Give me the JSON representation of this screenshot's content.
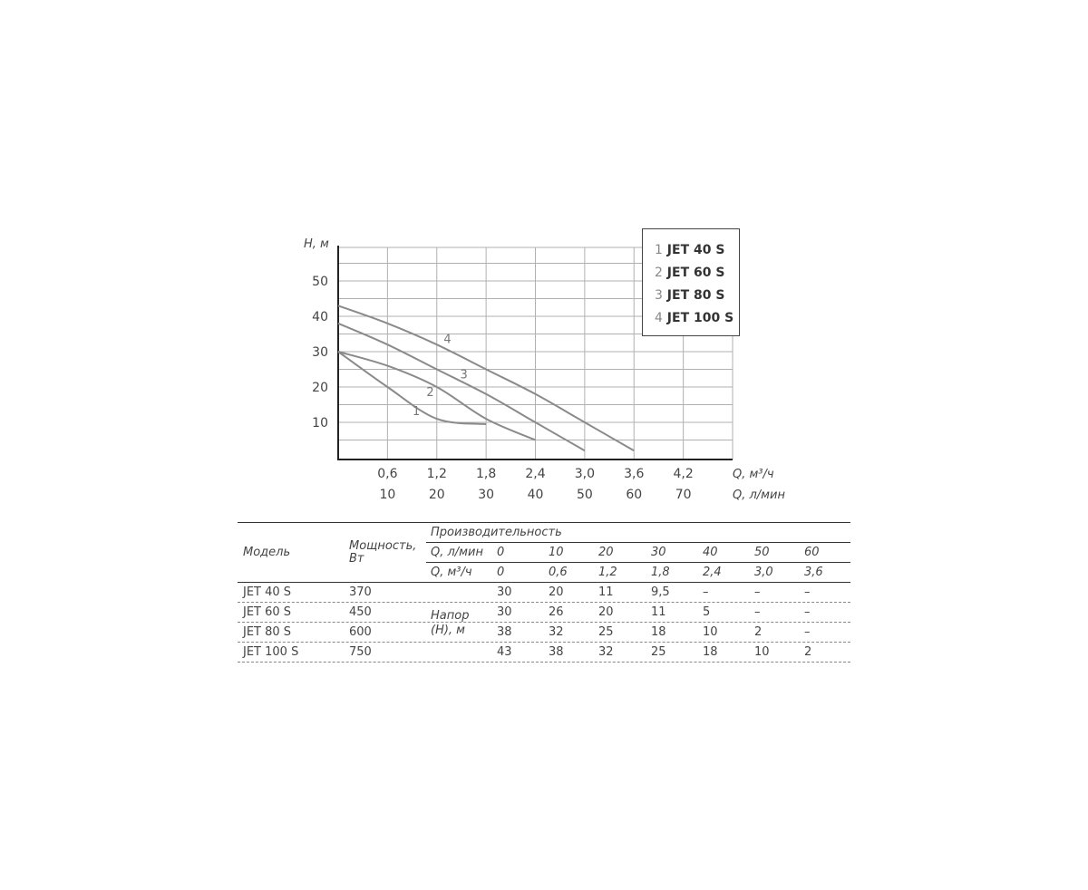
{
  "chart_data": {
    "type": "line",
    "ylabel": "H, м",
    "xlabel_primary": "Q, м³/ч",
    "xlabel_secondary": "Q, л/мин",
    "x_ticks_m3h": [
      "0,6",
      "1,2",
      "1,8",
      "2,4",
      "3,0",
      "3,6",
      "4,2"
    ],
    "x_ticks_lmin": [
      "10",
      "20",
      "30",
      "40",
      "50",
      "60",
      "70"
    ],
    "y_ticks": [
      "10",
      "20",
      "30",
      "40",
      "50"
    ],
    "xlim": [
      0,
      4.8
    ],
    "ylim": [
      0,
      60
    ],
    "grid": true,
    "legend_placement": "top-right",
    "colors": {
      "line": "#8a8a8a",
      "grid": "#b0b0b0",
      "axis": "#222222"
    },
    "series": [
      {
        "name": "JET 40 S",
        "num": "1",
        "x": [
          0,
          0.6,
          1.2,
          1.8
        ],
        "y": [
          30,
          20,
          11,
          9.5
        ]
      },
      {
        "name": "JET 60 S",
        "num": "2",
        "x": [
          0,
          0.6,
          1.2,
          1.8,
          2.4
        ],
        "y": [
          30,
          26,
          20,
          11,
          5
        ]
      },
      {
        "name": "JET 80 S",
        "num": "3",
        "x": [
          0,
          0.6,
          1.2,
          1.8,
          2.4,
          3.0
        ],
        "y": [
          38,
          32,
          25,
          18,
          10,
          2
        ]
      },
      {
        "name": "JET 100 S",
        "num": "4",
        "x": [
          0,
          0.6,
          1.2,
          1.8,
          2.4,
          3.0,
          3.6
        ],
        "y": [
          43,
          38,
          32,
          25,
          18,
          10,
          2
        ]
      }
    ]
  },
  "table": {
    "col_model": "Модель",
    "col_power": "Мощность, Вт",
    "col_perf": "Производительность",
    "q_lmin_label": "Q, л/мин",
    "q_m3h_label": "Q, м³/ч",
    "q_lmin": [
      "0",
      "10",
      "20",
      "30",
      "40",
      "50",
      "60"
    ],
    "q_m3h": [
      "0",
      "0,6",
      "1,2",
      "1,8",
      "2,4",
      "3,0",
      "3,6"
    ],
    "head_label": "Напор (Н), м",
    "rows": [
      {
        "model": "JET 40 S",
        "power": "370",
        "values": [
          "30",
          "20",
          "11",
          "9,5",
          "–",
          "–",
          "–"
        ]
      },
      {
        "model": "JET 60 S",
        "power": "450",
        "values": [
          "30",
          "26",
          "20",
          "11",
          "5",
          "–",
          "–"
        ]
      },
      {
        "model": "JET 80 S",
        "power": "600",
        "values": [
          "38",
          "32",
          "25",
          "18",
          "10",
          "2",
          "–"
        ]
      },
      {
        "model": "JET 100 S",
        "power": "750",
        "values": [
          "43",
          "38",
          "32",
          "25",
          "18",
          "10",
          "2"
        ]
      }
    ]
  }
}
